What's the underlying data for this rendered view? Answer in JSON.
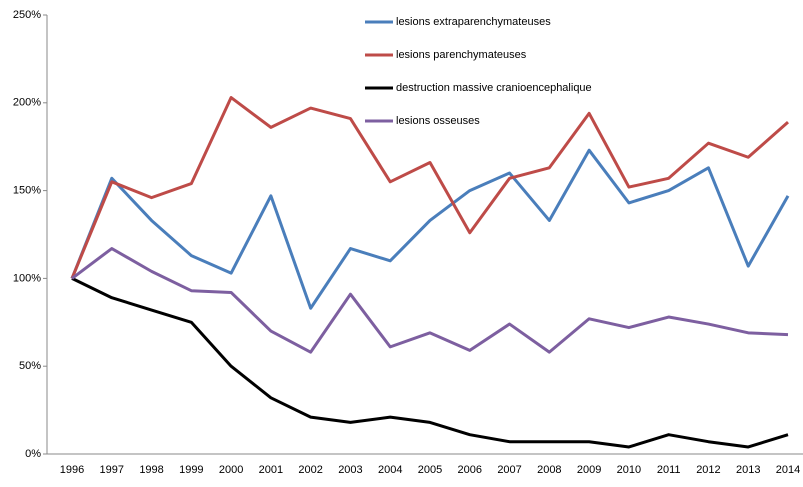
{
  "chart_data": {
    "type": "line",
    "categories": [
      "1996",
      "1997",
      "1998",
      "1999",
      "2000",
      "2001",
      "2002",
      "2003",
      "2004",
      "2005",
      "2006",
      "2007",
      "2008",
      "2009",
      "2010",
      "2011",
      "2012",
      "2013",
      "2014"
    ],
    "series": [
      {
        "name": "lesions extraparenchymateuses",
        "color": "#4a7ebb",
        "values": [
          100,
          157,
          133,
          113,
          103,
          147,
          83,
          117,
          110,
          133,
          150,
          160,
          133,
          173,
          143,
          150,
          163,
          107,
          147
        ]
      },
      {
        "name": "lesions parenchymateuses",
        "color": "#be4b48",
        "values": [
          100,
          155,
          146,
          154,
          203,
          186,
          197,
          191,
          155,
          166,
          126,
          157,
          163,
          194,
          152,
          157,
          177,
          169,
          189
        ]
      },
      {
        "name": "destruction massive cranioencephalique",
        "color": "#000000",
        "values": [
          100,
          89,
          82,
          75,
          50,
          32,
          21,
          18,
          21,
          18,
          11,
          7,
          7,
          7,
          4,
          11,
          7,
          4,
          11
        ]
      },
      {
        "name": "lesions osseuses",
        "color": "#7d5fa0",
        "values": [
          100,
          117,
          104,
          93,
          92,
          70,
          58,
          91,
          61,
          69,
          59,
          74,
          58,
          77,
          72,
          78,
          74,
          69,
          68
        ]
      }
    ],
    "ylim": [
      0,
      250
    ],
    "yticks": [
      {
        "value": 0,
        "label": "0%"
      },
      {
        "value": 50,
        "label": "50%"
      },
      {
        "value": 100,
        "label": "100%"
      },
      {
        "value": 150,
        "label": "150%"
      },
      {
        "value": 200,
        "label": "200%"
      },
      {
        "value": 250,
        "label": "250%"
      }
    ],
    "legend": "top"
  }
}
